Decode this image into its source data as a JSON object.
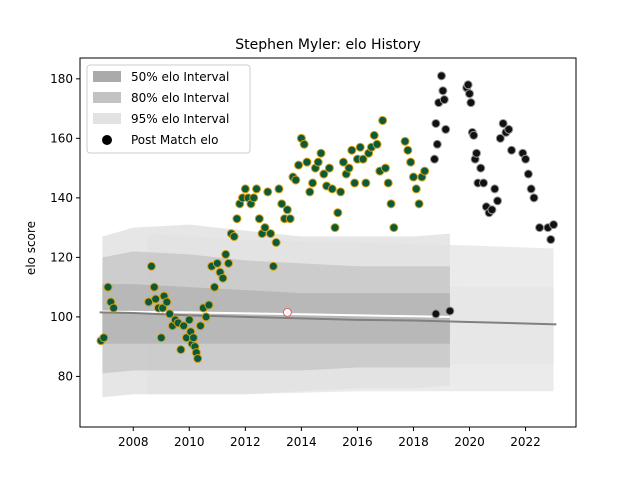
{
  "chart_data": {
    "type": "scatter",
    "title": "Stephen Myler: elo History",
    "xlabel": "",
    "ylabel": "elo score",
    "xlim": [
      2006.1,
      2023.8
    ],
    "ylim": [
      63,
      187
    ],
    "x_ticks": [
      2008,
      2010,
      2012,
      2014,
      2016,
      2018,
      2020,
      2022
    ],
    "y_ticks": [
      80,
      100,
      120,
      140,
      160,
      180
    ],
    "legend": {
      "placement": "top-left",
      "entries": [
        {
          "label": "50% elo Interval",
          "kind": "band",
          "color": "#aaaaaa"
        },
        {
          "label": "80% elo Interval",
          "kind": "band",
          "color": "#c2c2c2"
        },
        {
          "label": "95% elo Interval",
          "kind": "band",
          "color": "#e2e2e2"
        },
        {
          "label": "Post Match elo",
          "kind": "marker",
          "color": "#000000"
        }
      ]
    },
    "colors": {
      "green_fill": "#0b5a3a",
      "green_edge": "#d4a017",
      "black_fill": "#111111",
      "black_edge": "#999999",
      "median_line": "#808080",
      "white_line": "#ffffff",
      "outlier_edge": "#e06060"
    },
    "intervals": [
      {
        "name": "95% elo Interval",
        "color": "#e2e2e2",
        "x": [
          2006.9,
          2008,
          2010,
          2012,
          2014,
          2016,
          2018,
          2019.3
        ],
        "low": [
          73,
          74,
          74,
          74,
          75,
          76,
          76,
          77
        ],
        "high": [
          127,
          130,
          131,
          129,
          127,
          127,
          127,
          128
        ]
      },
      {
        "name": "80% elo Interval",
        "color": "#c8c8c8",
        "x": [
          2006.9,
          2008,
          2010,
          2012,
          2014,
          2016,
          2018,
          2019.3
        ],
        "low": [
          81,
          82,
          82,
          82,
          82,
          83,
          83,
          83
        ],
        "high": [
          120,
          122,
          121,
          119,
          118,
          117,
          117,
          117
        ]
      },
      {
        "name": "50% elo Interval",
        "color": "#b4b4b4",
        "x": [
          2006.9,
          2008,
          2010,
          2012,
          2014,
          2016,
          2018,
          2019.3
        ],
        "low": [
          91,
          91,
          91,
          91,
          91,
          91,
          91,
          91
        ],
        "high": [
          111,
          111,
          110,
          109,
          108,
          108,
          108,
          108
        ]
      }
    ],
    "far_bands": [
      {
        "x": [
          2008.5,
          2012,
          2016,
          2020,
          2023
        ],
        "low": [
          74,
          74,
          75,
          75,
          75
        ],
        "high": [
          128,
          126,
          125,
          124,
          123
        ]
      },
      {
        "x": [
          2008.5,
          2012,
          2016,
          2020,
          2023
        ],
        "low": [
          83,
          83,
          84,
          84,
          84
        ],
        "high": [
          114,
          112,
          111,
          110,
          110
        ]
      }
    ],
    "median_line": {
      "x": [
        2006.8,
        2008,
        2010,
        2012,
        2014,
        2016,
        2018,
        2020,
        2022,
        2023.1
      ],
      "y": [
        101.5,
        101.3,
        100.5,
        100.0,
        99.5,
        99.0,
        98.8,
        98.3,
        97.8,
        97.5
      ]
    },
    "white_line": {
      "x": [
        2006.8,
        2010,
        2014,
        2018,
        2019.3
      ],
      "y": [
        101.8,
        101.5,
        100.9,
        100.2,
        100.0
      ]
    },
    "post_match_active": {
      "x": [
        2006.85,
        2006.95,
        2007.1,
        2007.2,
        2007.3,
        2008.55,
        2008.65,
        2008.75,
        2008.8,
        2008.9,
        2009.0,
        2009.05,
        2009.1,
        2009.2,
        2009.3,
        2009.4,
        2009.5,
        2009.6,
        2009.7,
        2009.8,
        2009.9,
        2010.0,
        2010.05,
        2010.1,
        2010.15,
        2010.2,
        2010.25,
        2010.3,
        2010.4,
        2010.5,
        2010.6,
        2010.7,
        2010.8,
        2010.9,
        2011.0,
        2011.1,
        2011.2,
        2011.3,
        2011.4,
        2011.5,
        2011.6,
        2011.7,
        2011.8,
        2011.9,
        2012.0,
        2012.1,
        2012.2,
        2012.3,
        2012.4,
        2012.5,
        2012.6,
        2012.7,
        2012.8,
        2012.9,
        2013.0,
        2013.1,
        2013.2,
        2013.3,
        2013.4,
        2013.5,
        2013.6,
        2013.7,
        2013.8,
        2013.9,
        2014.0,
        2014.1,
        2014.2,
        2014.3,
        2014.4,
        2014.5,
        2014.6,
        2014.7,
        2014.8,
        2014.9,
        2015.0,
        2015.1,
        2015.2,
        2015.3,
        2015.4,
        2015.5,
        2015.6,
        2015.7,
        2015.8,
        2015.9,
        2016.0,
        2016.1,
        2016.2,
        2016.3,
        2016.4,
        2016.5,
        2016.6,
        2016.7,
        2016.8,
        2016.9,
        2017.0,
        2017.1,
        2017.2,
        2017.3,
        2017.7,
        2017.8,
        2017.9,
        2018.0,
        2018.1,
        2018.2,
        2018.3,
        2018.4
      ],
      "y": [
        92,
        93,
        110,
        105,
        103,
        105,
        117,
        110,
        106,
        103,
        93,
        103,
        107,
        105,
        101,
        97,
        99,
        98,
        89,
        97,
        93,
        99,
        95,
        91,
        93,
        90,
        88,
        86,
        97,
        103,
        100,
        104,
        117,
        110,
        118,
        115,
        113,
        121,
        118,
        128,
        127,
        133,
        138,
        140,
        143,
        140,
        138,
        140,
        143,
        133,
        128,
        130,
        142,
        128,
        117,
        125,
        143,
        138,
        133,
        136,
        133,
        147,
        146,
        151,
        160,
        158,
        152,
        142,
        145,
        150,
        152,
        155,
        148,
        144,
        150,
        143,
        130,
        135,
        142,
        152,
        148,
        150,
        156,
        145,
        153,
        157,
        153,
        145,
        155,
        157,
        161,
        158,
        149,
        166,
        150,
        145,
        138,
        130,
        159,
        156,
        152,
        147,
        143,
        138,
        147,
        149
      ]
    },
    "post_match_recent": {
      "x": [
        2018.8,
        2018.9,
        2019.0,
        2019.05,
        2019.1,
        2019.15,
        2018.85,
        2018.75,
        2019.9,
        2019.95,
        2020.0,
        2020.05,
        2020.1,
        2020.15,
        2020.2,
        2020.25,
        2020.3,
        2020.4,
        2020.5,
        2020.6,
        2020.7,
        2020.8,
        2020.9,
        2021.0,
        2021.1,
        2021.2,
        2021.3,
        2021.4,
        2021.5,
        2021.9,
        2022.0,
        2022.1,
        2022.2,
        2022.3,
        2022.5,
        2022.8,
        2022.9,
        2023.0,
        2018.8,
        2019.3
      ],
      "y": [
        165,
        172,
        181,
        176,
        173,
        163,
        158,
        153,
        177,
        178,
        175,
        172,
        162,
        161,
        153,
        155,
        145,
        150,
        145,
        137,
        135,
        136,
        143,
        139,
        160,
        165,
        162,
        163,
        156,
        155,
        153,
        148,
        143,
        140,
        130,
        130,
        126,
        131,
        101,
        102
      ]
    },
    "outlier_points": [
      {
        "x": 2013.5,
        "y": 101.5
      }
    ]
  }
}
